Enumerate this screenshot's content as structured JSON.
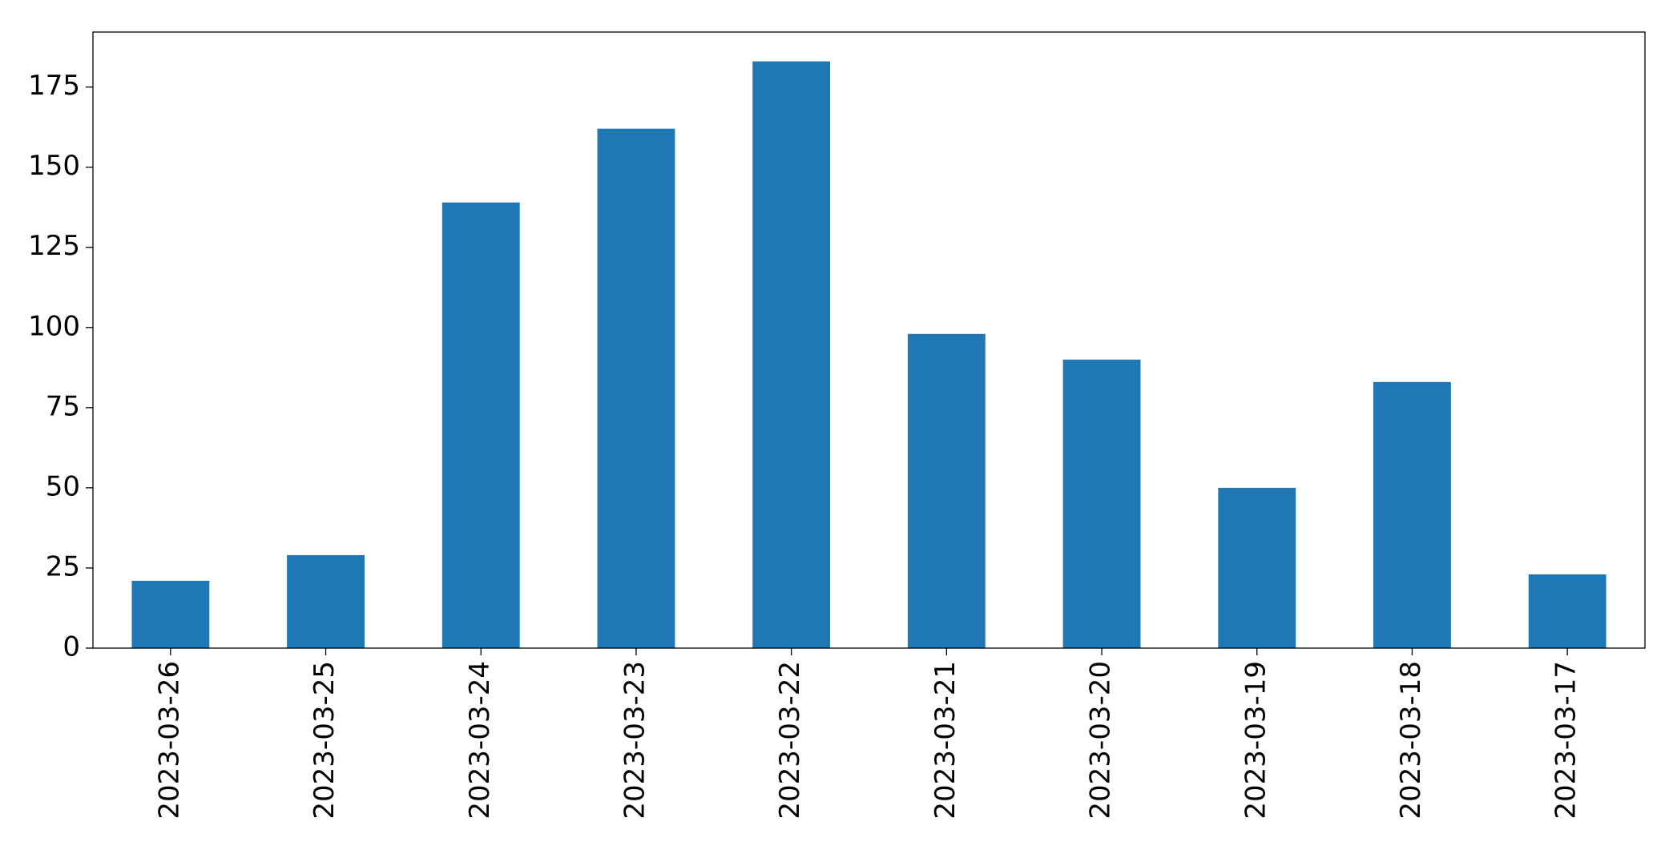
{
  "chart_data": {
    "type": "bar",
    "categories": [
      "2023-03-26",
      "2023-03-25",
      "2023-03-24",
      "2023-03-23",
      "2023-03-22",
      "2023-03-21",
      "2023-03-20",
      "2023-03-19",
      "2023-03-18",
      "2023-03-17"
    ],
    "values": [
      21,
      29,
      139,
      162,
      183,
      98,
      90,
      50,
      83,
      23
    ],
    "color": "#1f77b4",
    "ylim": [
      0,
      192.15
    ],
    "yticks": [
      0,
      25,
      50,
      75,
      100,
      125,
      150,
      175
    ],
    "grid": false
  }
}
